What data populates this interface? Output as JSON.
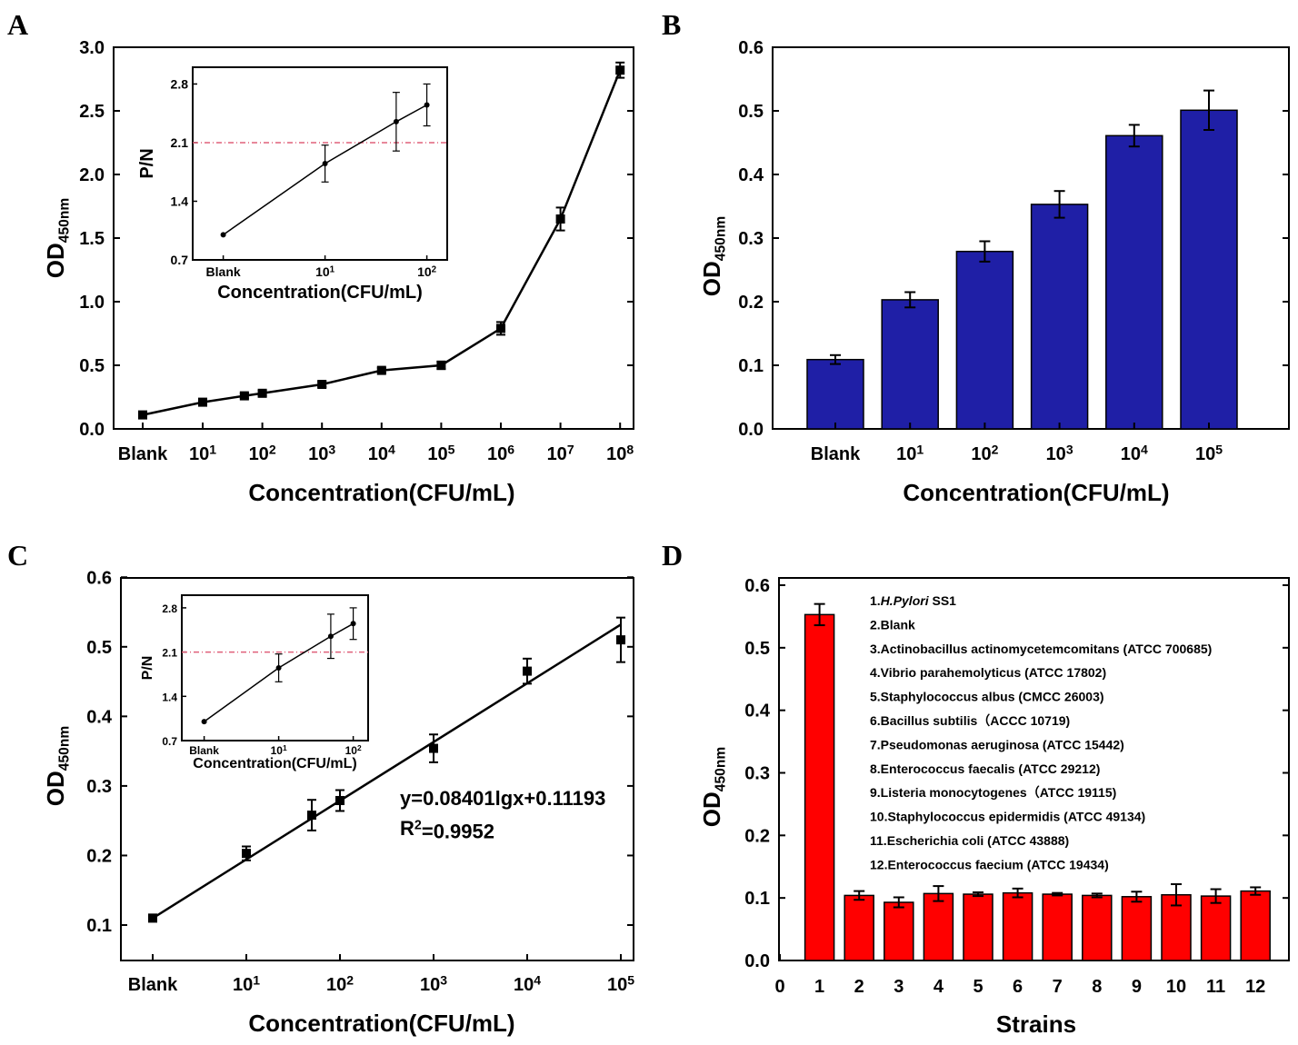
{
  "panels": [
    {
      "letter": "A"
    },
    {
      "letter": "B"
    },
    {
      "letter": "C"
    },
    {
      "letter": "D"
    }
  ],
  "chart_data": [
    {
      "panel": "A",
      "type": "line",
      "xlabel": "Concentration(CFU/mL)",
      "ylabel": "OD",
      "ylabel_sub": "450nm",
      "ylim": [
        0,
        3.0
      ],
      "yticks": [
        "0.0",
        "0.5",
        "1.0",
        "1.5",
        "2.0",
        "2.5",
        "3.0"
      ],
      "xticks": [
        "Blank",
        "10^1",
        "10^2",
        "10^3",
        "10^4",
        "10^5",
        "10^6",
        "10^7",
        "10^8"
      ],
      "series": [
        {
          "x": [
            "Blank",
            "10",
            "50",
            "100",
            "1000",
            "10000",
            "100000",
            "1000000",
            "10000000",
            "100000000"
          ],
          "values": [
            0.11,
            0.21,
            0.26,
            0.28,
            0.35,
            0.46,
            0.5,
            0.79,
            1.65,
            2.82
          ],
          "errors": [
            0.02,
            0.02,
            0.02,
            0.02,
            0.02,
            0.02,
            0.03,
            0.05,
            0.09,
            0.06
          ]
        }
      ],
      "inset": {
        "xlabel": "Concentration(CFU/mL)",
        "ylabel": "P/N",
        "ylim": [
          0.7,
          3.0
        ],
        "yticks": [
          "0.7",
          "1.4",
          "2.1",
          "2.8"
        ],
        "xticks": [
          "Blank",
          "10^1",
          "10^2"
        ],
        "threshold": 2.1,
        "series": [
          {
            "x": [
              "Blank",
              "10",
              "50",
              "100"
            ],
            "values": [
              1.0,
              1.85,
              2.35,
              2.55
            ],
            "errors": [
              0.0,
              0.22,
              0.35,
              0.25
            ]
          }
        ]
      }
    },
    {
      "panel": "B",
      "type": "bar",
      "xlabel": "Concentration(CFU/mL)",
      "ylabel": "OD",
      "ylabel_sub": "450nm",
      "ylim": [
        0,
        0.6
      ],
      "yticks": [
        "0.0",
        "0.1",
        "0.2",
        "0.3",
        "0.4",
        "0.5",
        "0.6"
      ],
      "categories": [
        "Blank",
        "10^1",
        "10^2",
        "10^3",
        "10^4",
        "10^5"
      ],
      "values": [
        0.109,
        0.203,
        0.279,
        0.353,
        0.461,
        0.501
      ],
      "errors": [
        0.007,
        0.012,
        0.016,
        0.021,
        0.017,
        0.031
      ],
      "bar_color": "#1f1fa6"
    },
    {
      "panel": "C",
      "type": "scatter",
      "xlabel": "Concentration(CFU/mL)",
      "ylabel": "OD",
      "ylabel_sub": "450nm",
      "ylim": [
        0.05,
        0.6
      ],
      "yticks": [
        "0.1",
        "0.2",
        "0.3",
        "0.4",
        "0.5",
        "0.6"
      ],
      "xticks": [
        "Blank",
        "10^1",
        "10^2",
        "10^3",
        "10^4",
        "10^5"
      ],
      "series": [
        {
          "x": [
            "Blank",
            "10",
            "50",
            "100",
            "1000",
            "10000",
            "100000"
          ],
          "values": [
            0.11,
            0.203,
            0.258,
            0.279,
            0.354,
            0.465,
            0.51
          ],
          "errors": [
            0.005,
            0.01,
            0.022,
            0.015,
            0.02,
            0.018,
            0.032
          ]
        }
      ],
      "fit": {
        "slope": 0.08401,
        "intercept": 0.11193
      },
      "equation": "y=0.08401lgx+0.11193",
      "r2_prefix": "R",
      "r2_sup": "2",
      "r2_value": "=0.9952",
      "inset": {
        "xlabel": "Concentration(CFU/mL)",
        "ylabel": "P/N",
        "ylim": [
          0.7,
          3.0
        ],
        "yticks": [
          "0.7",
          "1.4",
          "2.1",
          "2.8"
        ],
        "xticks": [
          "Blank",
          "10^1",
          "10^2"
        ],
        "threshold": 2.1,
        "series": [
          {
            "x": [
              "Blank",
              "10",
              "50",
              "100"
            ],
            "values": [
              1.0,
              1.85,
              2.35,
              2.55
            ],
            "errors": [
              0.0,
              0.22,
              0.35,
              0.25
            ]
          }
        ]
      }
    },
    {
      "panel": "D",
      "type": "bar",
      "xlabel": "Strains",
      "ylabel": "OD",
      "ylabel_sub": "450nm",
      "ylim": [
        0,
        0.65
      ],
      "yticks": [
        "0.0",
        "0.1",
        "0.2",
        "0.3",
        "0.4",
        "0.5",
        "0.6"
      ],
      "xticks": [
        "0",
        "1",
        "2",
        "3",
        "4",
        "5",
        "6",
        "7",
        "8",
        "9",
        "10",
        "11",
        "12"
      ],
      "categories": [
        "1",
        "2",
        "3",
        "4",
        "5",
        "6",
        "7",
        "8",
        "9",
        "10",
        "11",
        "12"
      ],
      "values": [
        0.553,
        0.104,
        0.093,
        0.107,
        0.106,
        0.108,
        0.106,
        0.104,
        0.102,
        0.105,
        0.103,
        0.111
      ],
      "errors": [
        0.017,
        0.007,
        0.008,
        0.012,
        0.003,
        0.007,
        0.002,
        0.003,
        0.008,
        0.017,
        0.011,
        0.006
      ],
      "bar_color": "#ff0000",
      "legend_entries": [
        {
          "prefix": "1.",
          "italic": "H.Pylori",
          "rest": " SS1"
        },
        {
          "prefix": "2.Blank",
          "italic": "",
          "rest": ""
        },
        {
          "prefix": "3.Actinobacillus actinomycetemcomitans (ATCC 700685)",
          "italic": "",
          "rest": ""
        },
        {
          "prefix": "4.Vibrio parahemolyticus (ATCC 17802)",
          "italic": "",
          "rest": ""
        },
        {
          "prefix": "5.Staphylococcus albus (CMCC 26003)",
          "italic": "",
          "rest": ""
        },
        {
          "prefix": "6.Bacillus subtilis（ACCC 10719)",
          "italic": "",
          "rest": ""
        },
        {
          "prefix": "7.Pseudomonas aeruginosa (ATCC 15442)",
          "italic": "",
          "rest": ""
        },
        {
          "prefix": "8.Enterococcus faecalis (ATCC 29212)",
          "italic": "",
          "rest": ""
        },
        {
          "prefix": "9.Listeria monocytogenes（ATCC 19115)",
          "italic": "",
          "rest": ""
        },
        {
          "prefix": "10.Staphylococcus epidermidis (ATCC 49134)",
          "italic": "",
          "rest": ""
        },
        {
          "prefix": "11.Escherichia coli (ATCC 43888)",
          "italic": "",
          "rest": ""
        },
        {
          "prefix": "12.Enterococcus faecium (ATCC 19434)",
          "italic": "",
          "rest": ""
        }
      ]
    }
  ]
}
